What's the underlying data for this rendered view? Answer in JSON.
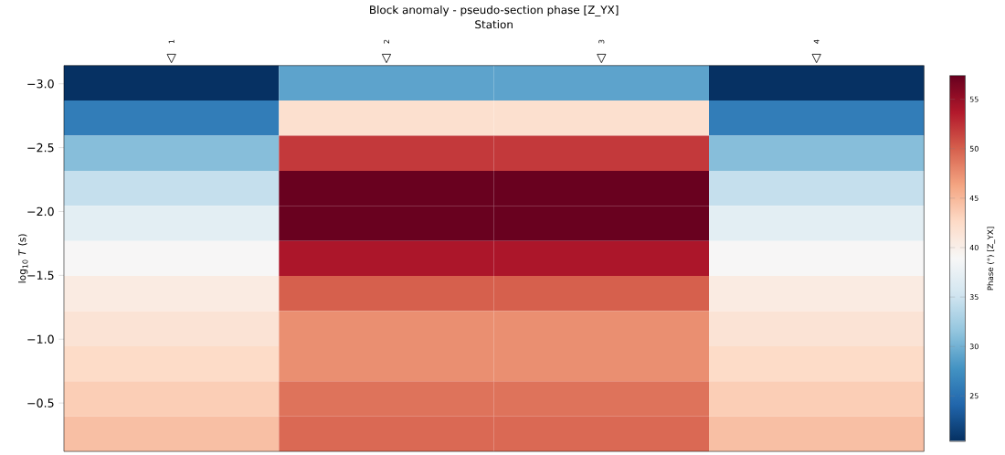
{
  "chart_data": {
    "type": "heatmap",
    "title": "Block anomaly - pseudo-section phase [Z_YX]",
    "xlabel": "Station",
    "ylabel": "log$_{10}$ *T* (s)",
    "clabel": "Phase (°)  [Z_YX]",
    "categories": [
      "1",
      "2",
      "3",
      "4"
    ],
    "ylim": [
      -0.121,
      -3.143
    ],
    "yticks": [
      {
        "value": -3.0,
        "label": "−3.0"
      },
      {
        "value": -2.5,
        "label": "−2.5"
      },
      {
        "value": -2.0,
        "label": "−2.0"
      },
      {
        "value": -1.5,
        "label": "−1.5"
      },
      {
        "value": -1.0,
        "label": "−1.0"
      },
      {
        "value": -0.5,
        "label": "−0.5"
      }
    ],
    "cells": [
      [
        20.5,
        29,
        29,
        20.5
      ],
      [
        26,
        42,
        42,
        26
      ],
      [
        31,
        52,
        52,
        31
      ],
      [
        34.5,
        57.3,
        57.3,
        34.5
      ],
      [
        37,
        57.3,
        57.3,
        37
      ],
      [
        39,
        54,
        54,
        39
      ],
      [
        40.5,
        50,
        50,
        40.5
      ],
      [
        41.5,
        47.5,
        47.5,
        41.5
      ],
      [
        42.5,
        47.5,
        47.5,
        42.5
      ],
      [
        43.5,
        49,
        49,
        43.5
      ],
      [
        44.5,
        49.5,
        49.5,
        44.5
      ]
    ],
    "clim": [
      20.4,
      57.4
    ],
    "cticks": [
      25,
      30,
      35,
      40,
      45,
      50,
      55
    ]
  }
}
